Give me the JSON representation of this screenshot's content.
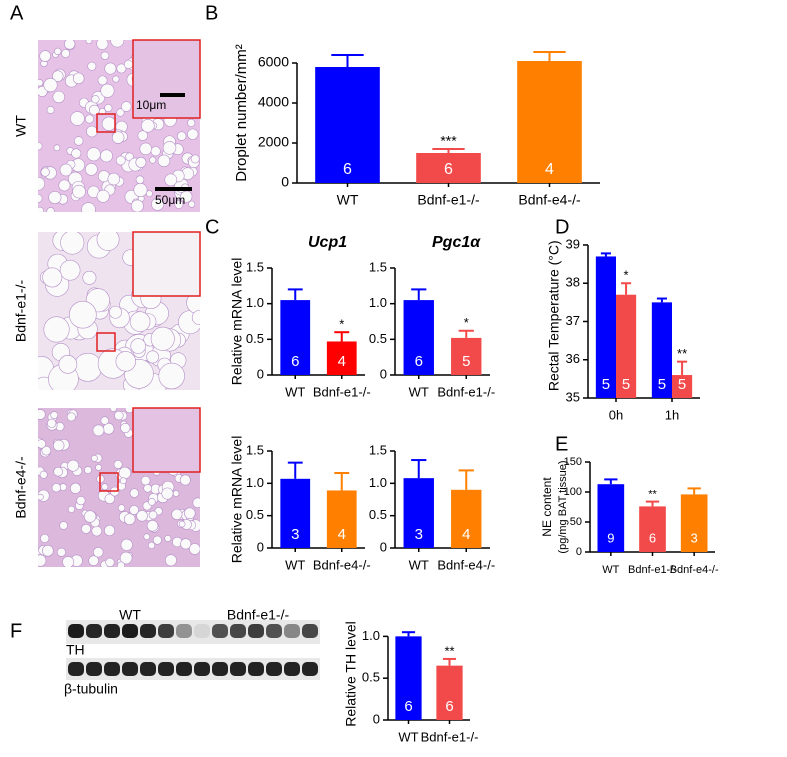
{
  "panel_letters": [
    "A",
    "B",
    "C",
    "D",
    "E",
    "F"
  ],
  "panel_A": {
    "rows": [
      "WT",
      "Bdnf-e1-/-",
      "Bdnf-e4-/-"
    ],
    "scale_bars": [
      "10μm",
      "50μm"
    ]
  },
  "panel_F_blot": {
    "groups": [
      "WT",
      "Bdnf-e1-/-"
    ],
    "proteins": [
      "TH",
      "β-tubulin"
    ]
  },
  "chart_data": [
    {
      "type": "bar",
      "ylabel": "Droplet number/mm²",
      "categories": [
        "WT",
        "Bdnf-e1-/-",
        "Bdnf-e4-/-"
      ],
      "values": [
        5800,
        1500,
        6100
      ],
      "errors": [
        600,
        200,
        450
      ],
      "colors": [
        "#0000ff",
        "#f24a4a",
        "#ff8000"
      ],
      "n": [
        6,
        6,
        4
      ],
      "significance": [
        null,
        "***",
        null
      ],
      "ylim": [
        0,
        7000
      ],
      "yticks": [
        0,
        2000,
        4000,
        6000
      ]
    },
    {
      "type": "bar",
      "title": "Ucp1",
      "ylabel": "Relative mRNA level",
      "categories": [
        "WT",
        "Bdnf-e1-/-"
      ],
      "values": [
        1.05,
        0.47
      ],
      "errors": [
        0.15,
        0.13
      ],
      "colors": [
        "#0000ff",
        "#ff0000"
      ],
      "n": [
        6,
        4
      ],
      "significance": [
        null,
        "*"
      ],
      "ylim": [
        0,
        1.5
      ],
      "yticks": [
        0,
        0.5,
        {
          "value": 1,
          "label": "1.0"
        },
        1.5
      ]
    },
    {
      "type": "bar",
      "title": "Pgc1α",
      "categories": [
        "WT",
        "Bdnf-e1-/-"
      ],
      "values": [
        1.05,
        0.52
      ],
      "errors": [
        0.15,
        0.1
      ],
      "colors": [
        "#0000ff",
        "#f24a4a"
      ],
      "n": [
        6,
        5
      ],
      "significance": [
        null,
        "*"
      ],
      "ylim": [
        0,
        1.5
      ],
      "yticks": [
        0,
        0.5,
        {
          "value": 1,
          "label": "1.0"
        },
        1.5
      ]
    },
    {
      "type": "bar",
      "ylabel": "Relative mRNA level",
      "categories": [
        "WT",
        "Bdnf-e4-/-"
      ],
      "values": [
        1.07,
        0.89
      ],
      "errors": [
        0.25,
        0.27
      ],
      "colors": [
        "#0000ff",
        "#ff8000"
      ],
      "n": [
        3,
        4
      ],
      "significance": [
        null,
        null
      ],
      "ylim": [
        0,
        1.5
      ],
      "yticks": [
        0,
        0.5,
        {
          "value": 1,
          "label": "1.0"
        },
        1.5
      ]
    },
    {
      "type": "bar",
      "categories": [
        "WT",
        "Bdnf-e4-/-"
      ],
      "values": [
        1.08,
        0.9
      ],
      "errors": [
        0.28,
        0.3
      ],
      "colors": [
        "#0000ff",
        "#ff8000"
      ],
      "n": [
        3,
        4
      ],
      "significance": [
        null,
        null
      ],
      "ylim": [
        0,
        1.5
      ],
      "yticks": [
        0,
        0.5,
        {
          "value": 1,
          "label": "1.0"
        },
        1.5
      ]
    },
    {
      "type": "grouped_bar",
      "ylabel": "Rectal Temperature (°C)",
      "categories": [
        "0h",
        "1h"
      ],
      "series": [
        {
          "color": "#0000ff",
          "values": [
            38.7,
            37.5
          ],
          "errors": [
            0.08,
            0.1
          ],
          "n": [
            5,
            5
          ],
          "significance": [
            null,
            null
          ]
        },
        {
          "color": "#f24a4a",
          "values": [
            37.7,
            35.6
          ],
          "errors": [
            0.3,
            0.35
          ],
          "n": [
            5,
            5
          ],
          "significance": [
            "*",
            "**"
          ]
        }
      ],
      "ylim": [
        35,
        39.3
      ],
      "yticks": [
        35,
        36,
        37,
        38,
        39
      ]
    },
    {
      "type": "bar",
      "ylabel": "NE content",
      "ylabel_unit": "(pg/mg BAT tissue)",
      "categories": [
        "WT",
        "Bdnf-e1-/-",
        "Bdnf-e4-/-"
      ],
      "values": [
        113,
        76,
        96
      ],
      "errors": [
        8,
        8,
        10
      ],
      "colors": [
        "#0000ff",
        "#f24a4a",
        "#ff8000"
      ],
      "n": [
        9,
        6,
        3
      ],
      "significance": [
        null,
        "**",
        null
      ],
      "ylim": [
        0,
        150
      ],
      "yticks": [
        0,
        50,
        100,
        150
      ]
    },
    {
      "type": "bar",
      "ylabel": "Relative TH level",
      "categories": [
        "WT",
        "Bdnf-e1-/-"
      ],
      "values": [
        1.0,
        0.65
      ],
      "errors": [
        0.05,
        0.08
      ],
      "colors": [
        "#0000ff",
        "#f24a4a"
      ],
      "n": [
        6,
        6
      ],
      "significance": [
        null,
        "**"
      ],
      "ylim": [
        0,
        1.1
      ],
      "yticks": [
        0,
        0.5,
        {
          "value": 1,
          "label": "1.0"
        }
      ]
    }
  ]
}
